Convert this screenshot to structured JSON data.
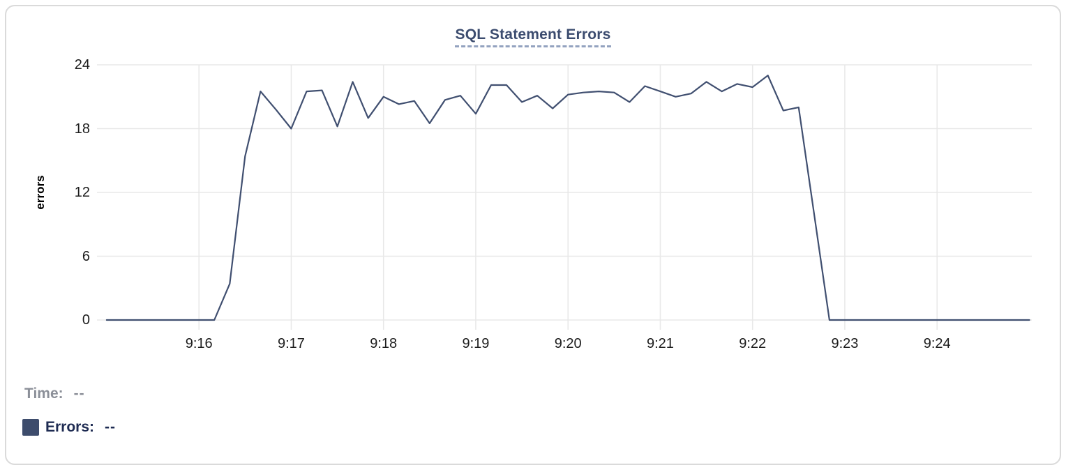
{
  "chart_data": {
    "type": "line",
    "title": "SQL Statement Errors",
    "xlabel": "",
    "ylabel": "errors",
    "x_tick_labels": [
      "9:16",
      "9:17",
      "9:18",
      "9:19",
      "9:20",
      "9:21",
      "9:22",
      "9:23",
      "9:24"
    ],
    "y_ticks": [
      0,
      6,
      12,
      18,
      24
    ],
    "ylim": [
      0,
      24
    ],
    "grid": true,
    "legend_position": "bottom-left",
    "x_start_label": "9:15:00",
    "x_step_seconds": 10,
    "series": [
      {
        "name": "Errors",
        "color": "#404f70",
        "values": [
          0,
          0,
          0,
          0,
          0,
          0,
          0,
          0,
          3.4,
          15.4,
          21.5,
          19.8,
          18,
          21.5,
          21.6,
          18.2,
          22.4,
          19,
          21,
          20.3,
          20.6,
          18.5,
          20.7,
          21.1,
          19.4,
          22.1,
          22.1,
          20.5,
          21.1,
          19.9,
          21.2,
          21.4,
          21.5,
          21.4,
          20.5,
          22,
          21.5,
          21,
          21.3,
          22.4,
          21.5,
          22.2,
          21.9,
          23,
          19.7,
          20,
          10,
          0,
          0,
          0,
          0,
          0,
          0,
          0,
          0,
          0,
          0,
          0,
          0,
          0,
          0
        ]
      }
    ]
  },
  "tooltip": {
    "time_label": "Time:",
    "time_value": "--",
    "errors_label": "Errors:",
    "errors_value": "--",
    "swatch_color": "#3d4c6c"
  },
  "colors": {
    "title": "#3c4c6f",
    "title_underline": "#93a2bf",
    "grid": "#e8e8e8",
    "tick_text": "#1c1c1c",
    "axis_label": "#000000",
    "line": "#404f70",
    "time_text": "#8b8f98",
    "errors_text": "#1e2b52",
    "card_border": "#dadada"
  }
}
